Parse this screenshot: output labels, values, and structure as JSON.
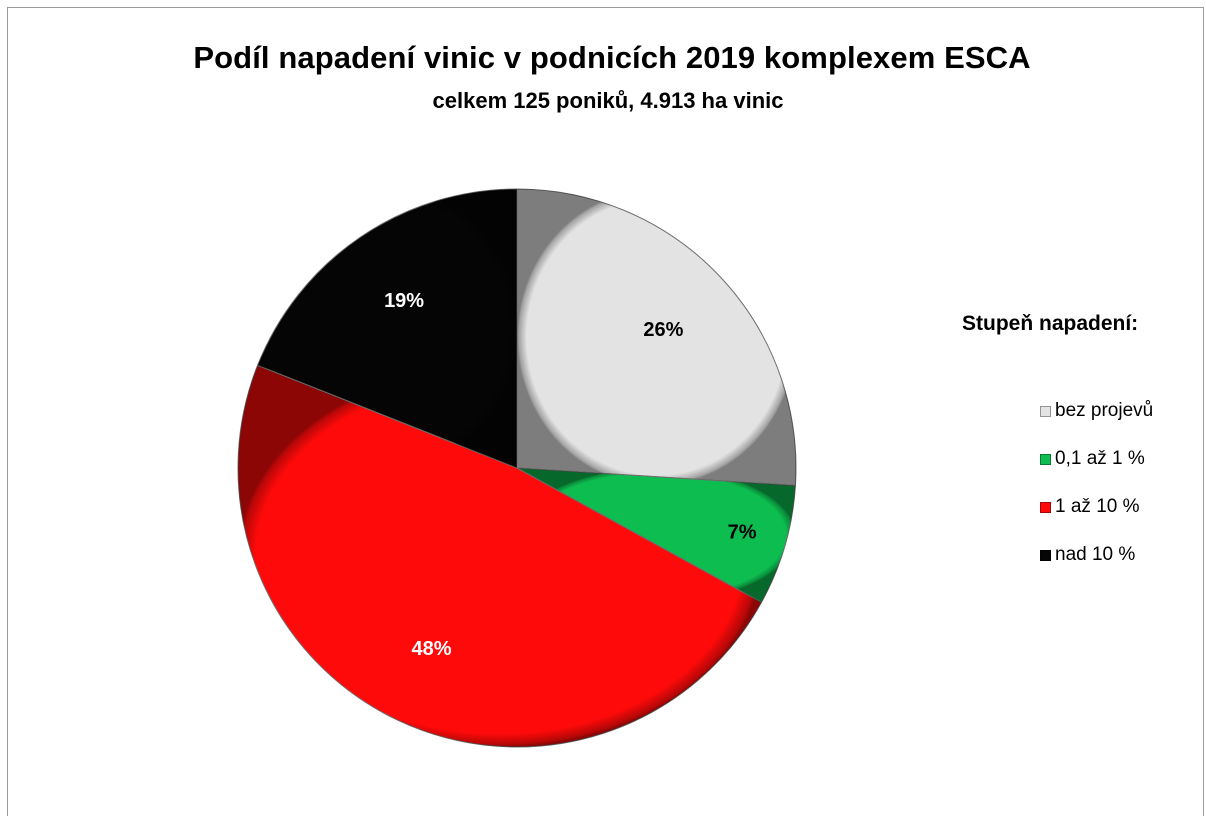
{
  "chart_data": {
    "type": "pie",
    "title": "Podíl napadení vinic v podnicích 2019 komplexem ESCA",
    "subtitle": "celkem 125 poniků, 4.913 ha vinic",
    "legend_title": "Stupeň napadení:",
    "legend_position": "right",
    "slices": [
      {
        "label": "bez projevů",
        "value": 26,
        "display": "26%",
        "color": "#e3e3e3",
        "label_color": "#000000"
      },
      {
        "label": "0,1 až 1 %",
        "value": 7,
        "display": "7%",
        "color": "#0dbd4f",
        "label_color": "#000000"
      },
      {
        "label": "1 až 10 %",
        "value": 48,
        "display": "48%",
        "color": "#ff0a0a",
        "label_color": "#ffffff"
      },
      {
        "label": "nad 10 %",
        "value": 19,
        "display": "19%",
        "color": "#050505",
        "label_color": "#ffffff"
      }
    ]
  }
}
